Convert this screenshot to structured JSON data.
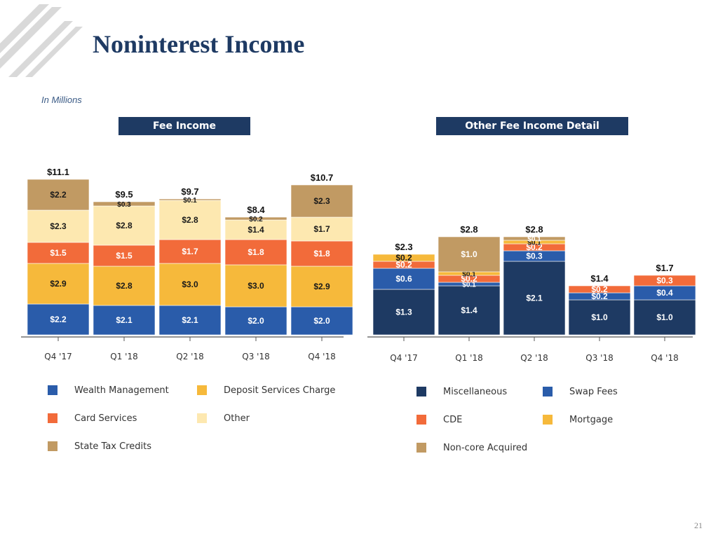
{
  "page": {
    "title": "Noninterest Income",
    "subtitle": "In Millions",
    "page_number": "21"
  },
  "colors": {
    "title": "#1e3a63",
    "header_bg": "#1e3a63",
    "wealth": "#2a5caa",
    "deposit": "#f6b93b",
    "card": "#f26b3a",
    "other": "#fde8b0",
    "state_tax": "#c19a63",
    "misc": "#1e3a63",
    "swap": "#2a5caa",
    "cde": "#f26b3a",
    "mortgage": "#f6b93b",
    "noncore": "#c19a63",
    "logo": "#d9d9d9"
  },
  "chart_data": [
    {
      "id": "fee-income",
      "header": "Fee Income",
      "type": "bar",
      "stacked": true,
      "categories": [
        "Q4 '17",
        "Q1 '18",
        "Q2 '18",
        "Q3 '18",
        "Q4 '18"
      ],
      "series": [
        {
          "name": "Wealth Management",
          "color_key": "wealth",
          "values": [
            2.2,
            2.1,
            2.1,
            2.0,
            2.0
          ],
          "labels": [
            "$2.2",
            "$2.1",
            "$2.1",
            "$2.0",
            "$2.0"
          ]
        },
        {
          "name": "Deposit Services Charge",
          "color_key": "deposit",
          "values": [
            2.9,
            2.8,
            3.0,
            3.0,
            2.9
          ],
          "labels": [
            "$2.9",
            "$2.8",
            "$3.0",
            "$3.0",
            "$2.9"
          ]
        },
        {
          "name": "Card Services",
          "color_key": "card",
          "values": [
            1.5,
            1.5,
            1.7,
            1.8,
            1.8
          ],
          "labels": [
            "$1.5",
            "$1.5",
            "$1.7",
            "$1.8",
            "$1.8"
          ]
        },
        {
          "name": "Other",
          "color_key": "other",
          "values": [
            2.3,
            2.8,
            2.8,
            1.4,
            1.7
          ],
          "labels": [
            "$2.3",
            "$2.8",
            "$2.8",
            "$1.4",
            "$1.7"
          ]
        },
        {
          "name": "State Tax Credits",
          "color_key": "state_tax",
          "values": [
            2.2,
            0.3,
            0.1,
            0.2,
            2.3
          ],
          "labels": [
            "$2.2",
            "$0.3",
            "$0.1",
            "$0.2",
            "$2.3"
          ]
        }
      ],
      "totals": [
        11.1,
        9.5,
        9.7,
        8.4,
        10.7
      ],
      "total_labels": [
        "$11.1",
        "$9.5",
        "$9.7",
        "$8.4",
        "$10.7"
      ],
      "ylim": [
        0,
        11.5
      ],
      "grid": false,
      "legend": [
        {
          "label": "Wealth Management",
          "color_key": "wealth"
        },
        {
          "label": "Deposit Services Charge",
          "color_key": "deposit"
        },
        {
          "label": "Card Services",
          "color_key": "card"
        },
        {
          "label": "Other",
          "color_key": "other"
        },
        {
          "label": "State Tax Credits",
          "color_key": "state_tax"
        }
      ]
    },
    {
      "id": "other-fee-income-detail",
      "header": "Other Fee Income Detail",
      "type": "bar",
      "stacked": true,
      "categories": [
        "Q4 '17",
        "Q1 '18",
        "Q2 '18",
        "Q3 '18",
        "Q4 '18"
      ],
      "series": [
        {
          "name": "Miscellaneous",
          "color_key": "misc",
          "values": [
            1.3,
            1.4,
            2.1,
            1.0,
            1.0
          ],
          "labels": [
            "$1.3",
            "$1.4",
            "$2.1",
            "$1.0",
            "$1.0"
          ]
        },
        {
          "name": "Swap Fees",
          "color_key": "swap",
          "values": [
            0.6,
            0.1,
            0.3,
            0.2,
            0.4
          ],
          "labels": [
            "$0.6",
            "$0.1",
            "$0.3",
            "$0.2",
            "$0.4"
          ]
        },
        {
          "name": "CDE",
          "color_key": "cde",
          "values": [
            0.2,
            0.2,
            0.2,
            0.2,
            0.3
          ],
          "labels": [
            "$0.2",
            "$0.2",
            "$0.2",
            "$0.2",
            "$0.3"
          ]
        },
        {
          "name": "Mortgage",
          "color_key": "mortgage",
          "values": [
            0.2,
            0.1,
            0.1,
            0,
            0
          ],
          "labels": [
            "$0.2",
            "$0.1",
            "$0.1",
            "",
            ""
          ]
        },
        {
          "name": "Non-core Acquired",
          "color_key": "noncore",
          "values": [
            0,
            1.0,
            0.1,
            0,
            0
          ],
          "labels": [
            "",
            "$1.0",
            "$0.1",
            "",
            ""
          ]
        }
      ],
      "totals": [
        2.3,
        2.8,
        2.8,
        1.4,
        1.7
      ],
      "total_labels": [
        "$2.3",
        "$2.8",
        "$2.8",
        "$1.4",
        "$1.7"
      ],
      "ylim": [
        0,
        3.0
      ],
      "grid": false,
      "legend": [
        {
          "label": "Miscellaneous",
          "color_key": "misc"
        },
        {
          "label": "Swap Fees",
          "color_key": "swap"
        },
        {
          "label": "CDE",
          "color_key": "cde"
        },
        {
          "label": "Mortgage",
          "color_key": "mortgage"
        },
        {
          "label": "Non-core Acquired",
          "color_key": "noncore"
        }
      ]
    }
  ]
}
